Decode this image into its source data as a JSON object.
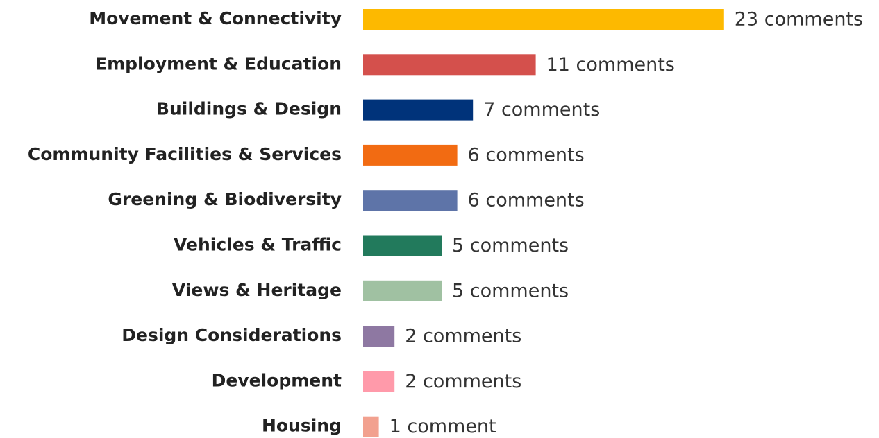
{
  "chart_data": {
    "type": "bar",
    "orientation": "horizontal",
    "categories": [
      "Movement & Connectivity",
      "Employment & Education",
      "Buildings & Design",
      "Community Facilities & Services",
      "Greening & Biodiversity",
      "Vehicles & Traffic",
      "Views & Heritage",
      "Design Considerations",
      "Development",
      "Housing"
    ],
    "values": [
      23,
      11,
      7,
      6,
      6,
      5,
      5,
      2,
      2,
      1
    ],
    "value_labels": [
      "23 comments",
      "11 comments",
      "7 comments",
      "6 comments",
      "6 comments",
      "5 comments",
      "5 comments",
      "2 comments",
      "2 comments",
      "1 comment"
    ],
    "colors": [
      "#fdb900",
      "#d4504c",
      "#00337a",
      "#f26b12",
      "#5e74a8",
      "#227a5c",
      "#a0c1a2",
      "#8e78a2",
      "#ff9aaa",
      "#f2a18f"
    ]
  }
}
